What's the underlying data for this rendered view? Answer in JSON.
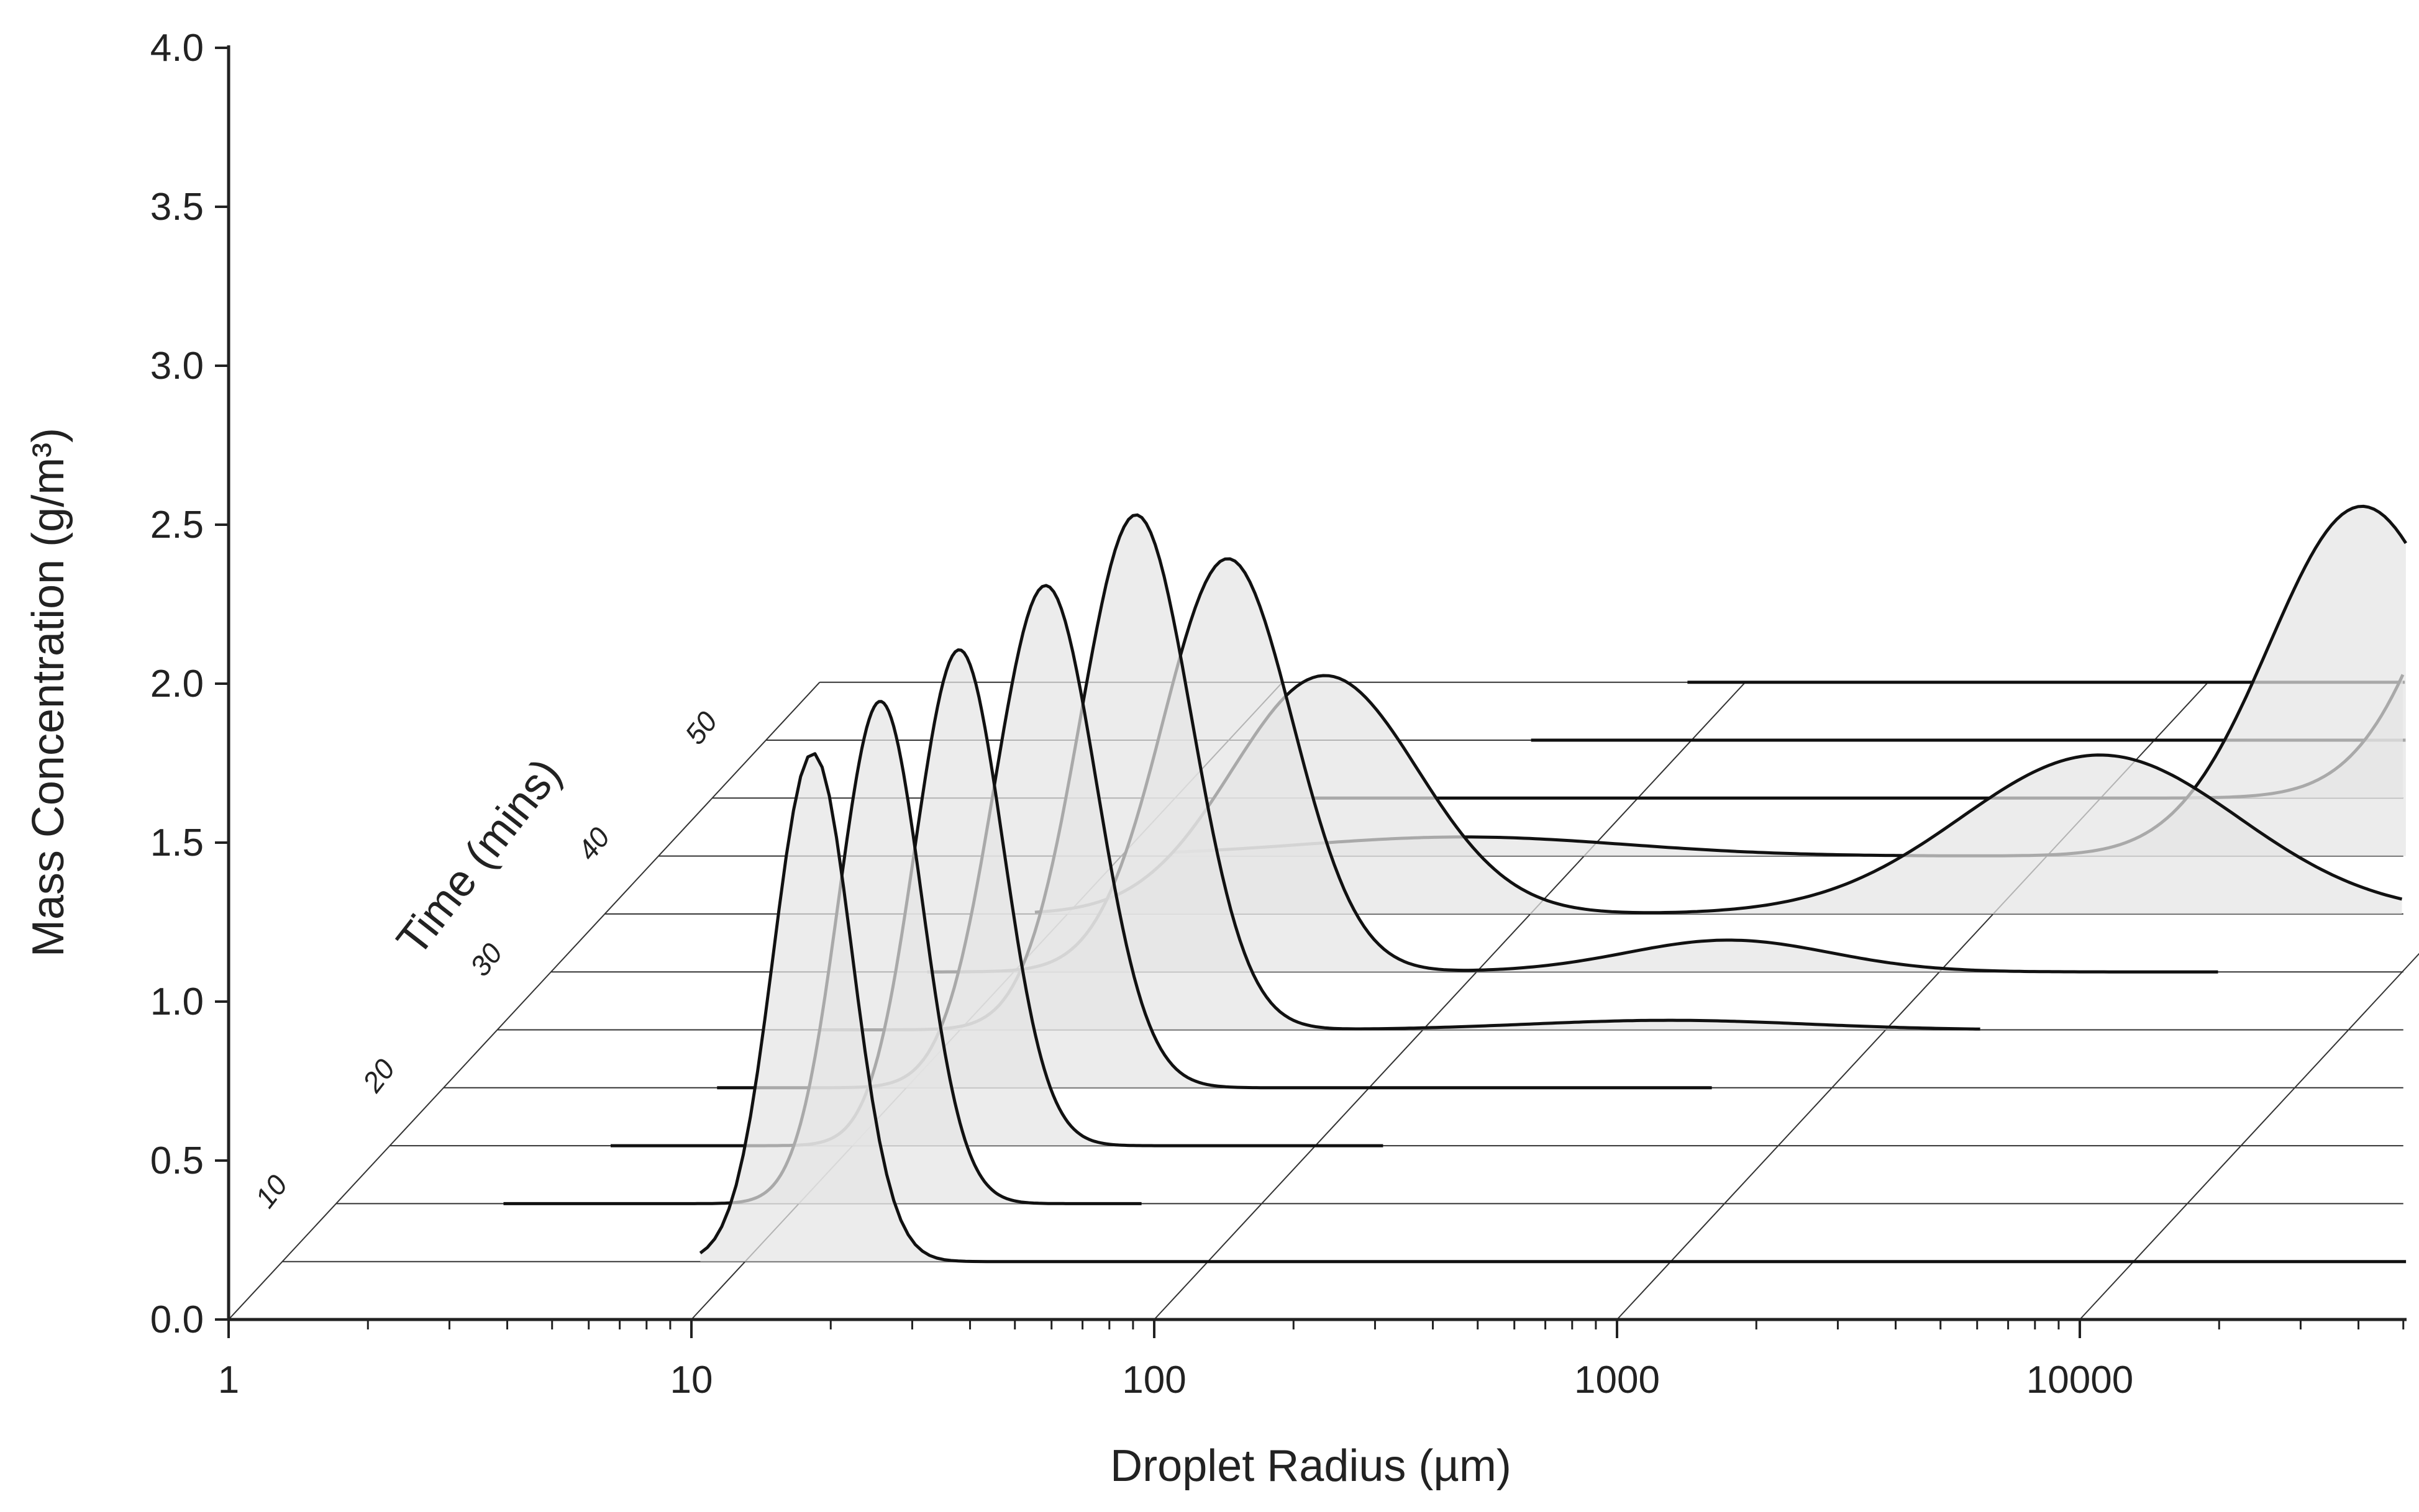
{
  "chart_data": {
    "type": "area",
    "subtype": "ridgeline / waterfall (pseudo-3D)",
    "xlabel": "Droplet Radius (µm)",
    "ylabel": "Mass Concentration (g/m³)",
    "zlabel": "Time (mins)",
    "x_scale": "log",
    "xlim": [
      1,
      50000
    ],
    "ylim": [
      0,
      4.0
    ],
    "x_ticks": [
      "1",
      "10",
      "100",
      "1000",
      "10000"
    ],
    "y_ticks": [
      "0.0",
      "0.5",
      "1.0",
      "1.5",
      "2.0",
      "2.5",
      "3.0",
      "3.5",
      "4.0"
    ],
    "time_ticks": [
      "10",
      "20",
      "30",
      "40",
      "50"
    ],
    "time_values": [
      5,
      10,
      15,
      20,
      25,
      30,
      35,
      40,
      45,
      50,
      55
    ],
    "fill_color": "#e4e4e4",
    "line_color": "#111111",
    "series": [
      {
        "time": 5,
        "range": [
          8,
          85000
        ],
        "modes": [
          {
            "center": 14,
            "width": 0.085,
            "amp": 1.6
          }
        ]
      },
      {
        "time": 10,
        "range": [
          2.3,
          55
        ],
        "modes": [
          {
            "center": 15,
            "width": 0.09,
            "amp": 1.58
          }
        ]
      },
      {
        "time": 15,
        "range": [
          3,
          140
        ],
        "modes": [
          {
            "center": 17,
            "width": 0.095,
            "amp": 1.56
          }
        ]
      },
      {
        "time": 20,
        "range": [
          3.9,
          550
        ],
        "modes": [
          {
            "center": 20,
            "width": 0.11,
            "amp": 1.58
          }
        ]
      },
      {
        "time": 25,
        "range": [
          5,
          1600
        ],
        "modes": [
          {
            "center": 24,
            "width": 0.12,
            "amp": 1.62
          },
          {
            "center": 340,
            "width": 0.3,
            "amp": 0.03
          }
        ]
      },
      {
        "time": 30,
        "range": [
          6.5,
          4000
        ],
        "modes": [
          {
            "center": 29,
            "width": 0.14,
            "amp": 1.3
          },
          {
            "center": 350,
            "width": 0.22,
            "amp": 0.1
          }
        ]
      },
      {
        "time": 35,
        "range": [
          8.5,
          8500
        ],
        "modes": [
          {
            "center": 36,
            "width": 0.2,
            "amp": 0.75
          },
          {
            "center": 1700,
            "width": 0.3,
            "amp": 0.5
          }
        ]
      },
      {
        "time": 40,
        "range": [
          13,
          12500
        ],
        "modes": [
          {
            "center": 55,
            "width": 0.35,
            "amp": 0.06
          },
          {
            "center": 4800,
            "width": 0.2,
            "amp": 1.1
          }
        ]
      },
      {
        "time": 45,
        "range": [
          20,
          18000
        ],
        "modes": [
          {
            "center": 9500,
            "width": 0.2,
            "amp": 1.45
          }
        ]
      },
      {
        "time": 50,
        "range": [
          45,
          25000
        ],
        "modes": [
          {
            "center": 16000,
            "width": 0.1,
            "amp": 1.6
          }
        ]
      },
      {
        "time": 55,
        "range": [
          75,
          38000
        ],
        "modes": [
          {
            "center": 25000,
            "width": 0.08,
            "amp": 1.92
          }
        ]
      }
    ]
  }
}
